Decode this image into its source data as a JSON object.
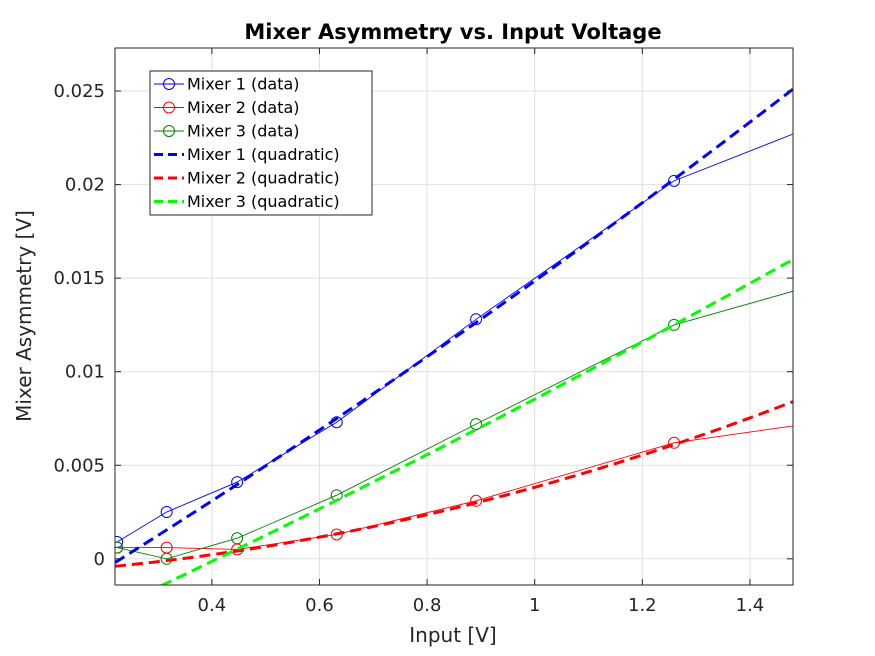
{
  "chart_data": {
    "type": "line",
    "title": "Mixer Asymmetry vs. Input Voltage",
    "xlabel": "Input [V]",
    "ylabel": "Mixer Asymmetry [V]",
    "xlim": [
      0.22,
      1.48
    ],
    "ylim": [
      -0.0014,
      0.0273
    ],
    "xticks": [
      0.4,
      0.6,
      0.8,
      1.0,
      1.2,
      1.4
    ],
    "xtick_labels": [
      "0.4",
      "0.6",
      "0.8",
      "1",
      "1.2",
      "1.4"
    ],
    "yticks": [
      0,
      0.005,
      0.01,
      0.015,
      0.02,
      0.025
    ],
    "ytick_labels": [
      "0",
      "0.005",
      "0.01",
      "0.015",
      "0.02",
      "0.025"
    ],
    "grid": true,
    "legend_position": "top-left",
    "x": [
      0.224,
      0.316,
      0.447,
      0.632,
      0.891,
      1.259
    ],
    "series": [
      {
        "name": "Mixer 1 (data)",
        "kind": "data",
        "color": "#0000ff",
        "values": [
          0.0009,
          0.0025,
          0.0041,
          0.0073,
          0.0128,
          0.0202
        ],
        "extend_to": [
          1.48,
          0.0227
        ]
      },
      {
        "name": "Mixer 2 (data)",
        "kind": "data",
        "color": "#ff0000",
        "values": [
          0.0006,
          0.0006,
          0.0005,
          0.0013,
          0.0031,
          0.0062
        ],
        "extend_to": [
          1.48,
          0.0071
        ]
      },
      {
        "name": "Mixer 3 (data)",
        "kind": "data",
        "color": "#008000",
        "values": [
          0.0006,
          0.0,
          0.0011,
          0.0034,
          0.0072,
          0.0125
        ],
        "extend_to": [
          1.48,
          0.0143
        ]
      },
      {
        "name": "Mixer 1 (quadratic)",
        "kind": "fit",
        "color": "#0000ff",
        "fit_points": [
          [
            0.22,
            -0.0002
          ],
          [
            0.85,
            0.0118
          ],
          [
            1.48,
            0.0251
          ]
        ]
      },
      {
        "name": "Mixer 2 (quadratic)",
        "kind": "fit",
        "color": "#ff0000",
        "fit_points": [
          [
            0.22,
            -0.0004
          ],
          [
            0.85,
            0.0027
          ],
          [
            1.48,
            0.0084
          ]
        ]
      },
      {
        "name": "Mixer 3 (quadratic)",
        "kind": "fit",
        "color": "#00ff00",
        "fit_points": [
          [
            0.22,
            -0.0026
          ],
          [
            0.85,
            0.0063
          ],
          [
            1.48,
            0.016
          ]
        ]
      }
    ]
  }
}
